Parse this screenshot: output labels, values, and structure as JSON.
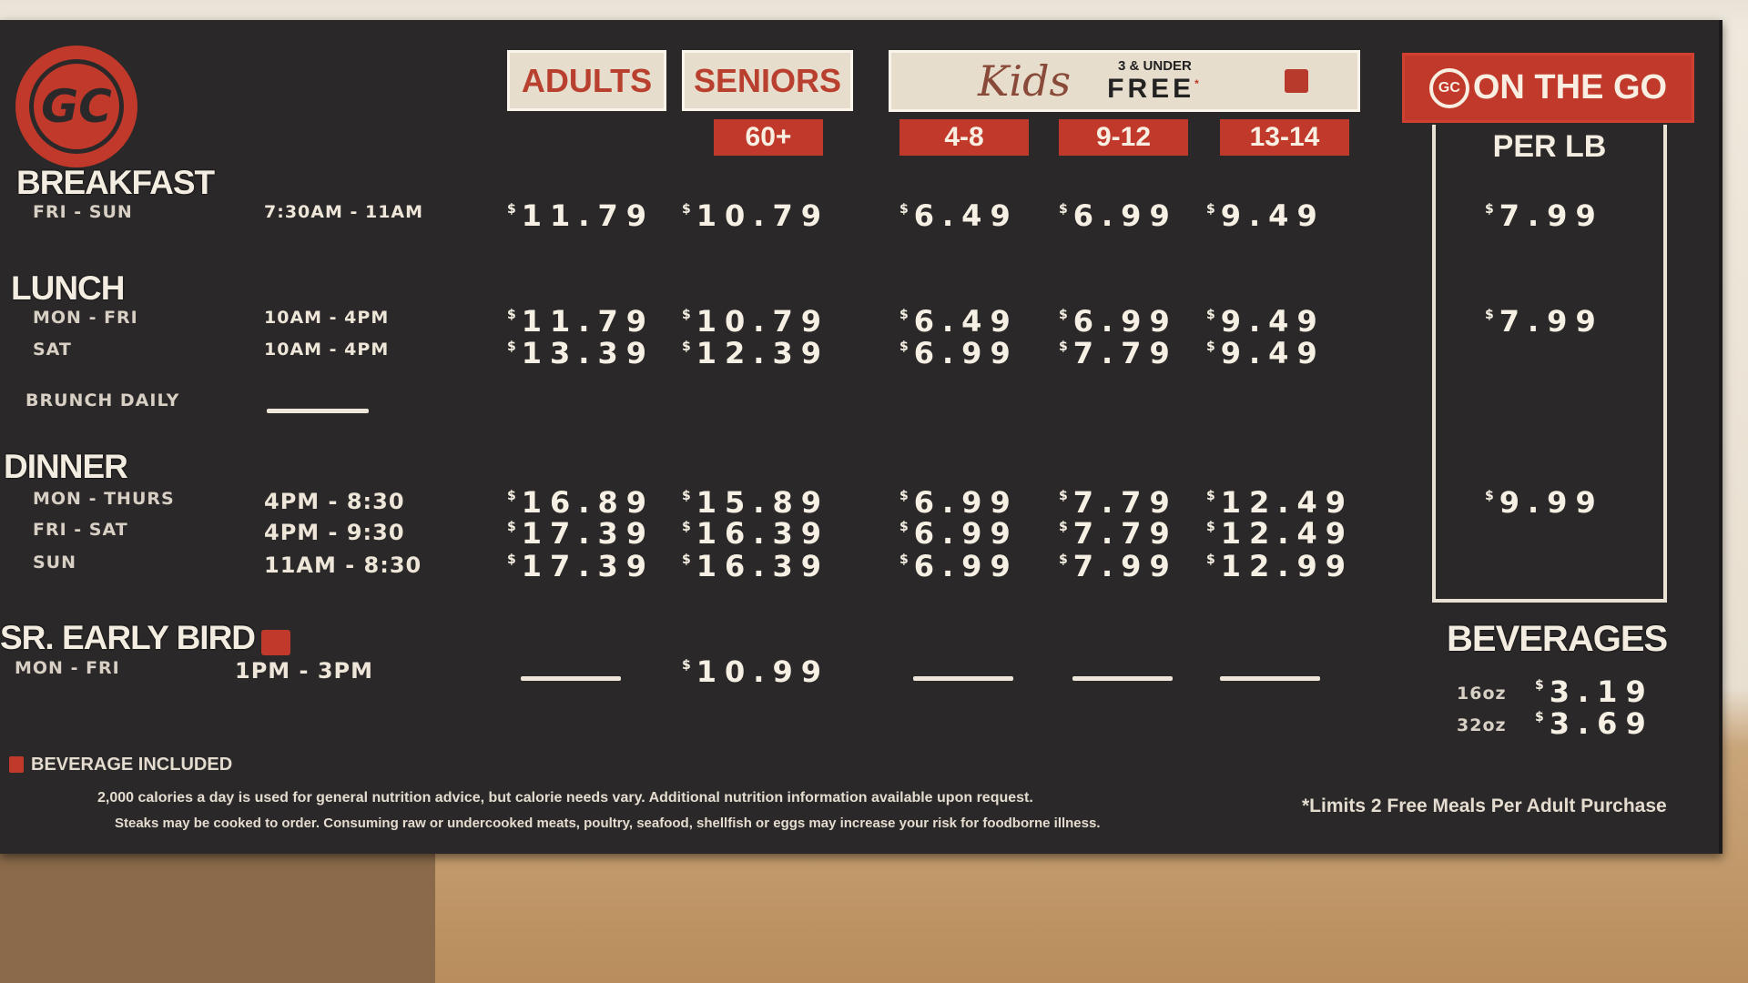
{
  "brand": {
    "logo_text": "GC",
    "accent": "#c0392b",
    "board_color": "#2b2829",
    "cream": "#e6ddcc"
  },
  "header": {
    "adults": "ADULTS",
    "seniors": "SENIORS",
    "seniors_age": "60+",
    "kids_script": "Kids",
    "kids_free_note": "3 & UNDER",
    "kids_free": "FREE",
    "kids_free_mark": "*",
    "kids_ages": [
      "4-8",
      "9-12",
      "13-14"
    ],
    "on_the_go": "ON THE GO",
    "on_the_go_logo": "GC",
    "per_lb": "PER LB"
  },
  "currency": "$",
  "sections": [
    {
      "title": "BREAKFAST",
      "lines": [
        {
          "days": "FRI - SUN",
          "hours": "7:30AM - 11AM",
          "prices": [
            "11.79",
            "10.79",
            "6.49",
            "6.99",
            "9.49"
          ],
          "per_lb": "7.99"
        }
      ]
    },
    {
      "title": "LUNCH",
      "lines": [
        {
          "days": "MON - FRI",
          "hours": "10AM - 4PM",
          "prices": [
            "11.79",
            "10.79",
            "6.49",
            "6.99",
            "9.49"
          ],
          "per_lb": "7.99"
        },
        {
          "days": "SAT",
          "hours": "10AM - 4PM",
          "prices": [
            "13.39",
            "12.39",
            "6.99",
            "7.79",
            "9.49"
          ]
        }
      ]
    },
    {
      "title": "",
      "lines": [
        {
          "days": "BRUNCH DAILY",
          "hours": null,
          "prices": []
        }
      ]
    },
    {
      "title": "DINNER",
      "lines": [
        {
          "days": "MON - THURS",
          "hours": "4PM - 8:30",
          "prices": [
            "16.89",
            "15.89",
            "6.99",
            "7.79",
            "12.49"
          ],
          "per_lb": "9.99"
        },
        {
          "days": "FRI - SAT",
          "hours": "4PM - 9:30",
          "prices": [
            "17.39",
            "16.39",
            "6.99",
            "7.79",
            "12.49"
          ]
        },
        {
          "days": "SUN",
          "hours": "11AM - 8:30",
          "prices": [
            "17.39",
            "16.39",
            "6.99",
            "7.99",
            "12.99"
          ]
        }
      ]
    },
    {
      "title": "SR. EARLY BIRD",
      "beverage_included": true,
      "lines": [
        {
          "days": "MON - FRI",
          "hours": "1PM - 3PM",
          "prices": [
            null,
            "10.99",
            null,
            null,
            null
          ]
        }
      ]
    }
  ],
  "beverages": {
    "title": "BEVERAGES",
    "items": [
      {
        "size": "16oz",
        "price": "3.19"
      },
      {
        "size": "32oz",
        "price": "3.69"
      }
    ]
  },
  "footer": {
    "legend": "BEVERAGE INCLUDED",
    "nutrition": "2,000 calories a day is used for general nutrition advice, but calorie needs vary. Additional nutrition information available upon request.",
    "warning": "Steaks may be cooked to order. Consuming raw or undercooked meats, poultry, seafood, shellfish or eggs may increase your risk for foodborne illness.",
    "limit": "*Limits 2 Free Meals Per Adult Purchase"
  }
}
